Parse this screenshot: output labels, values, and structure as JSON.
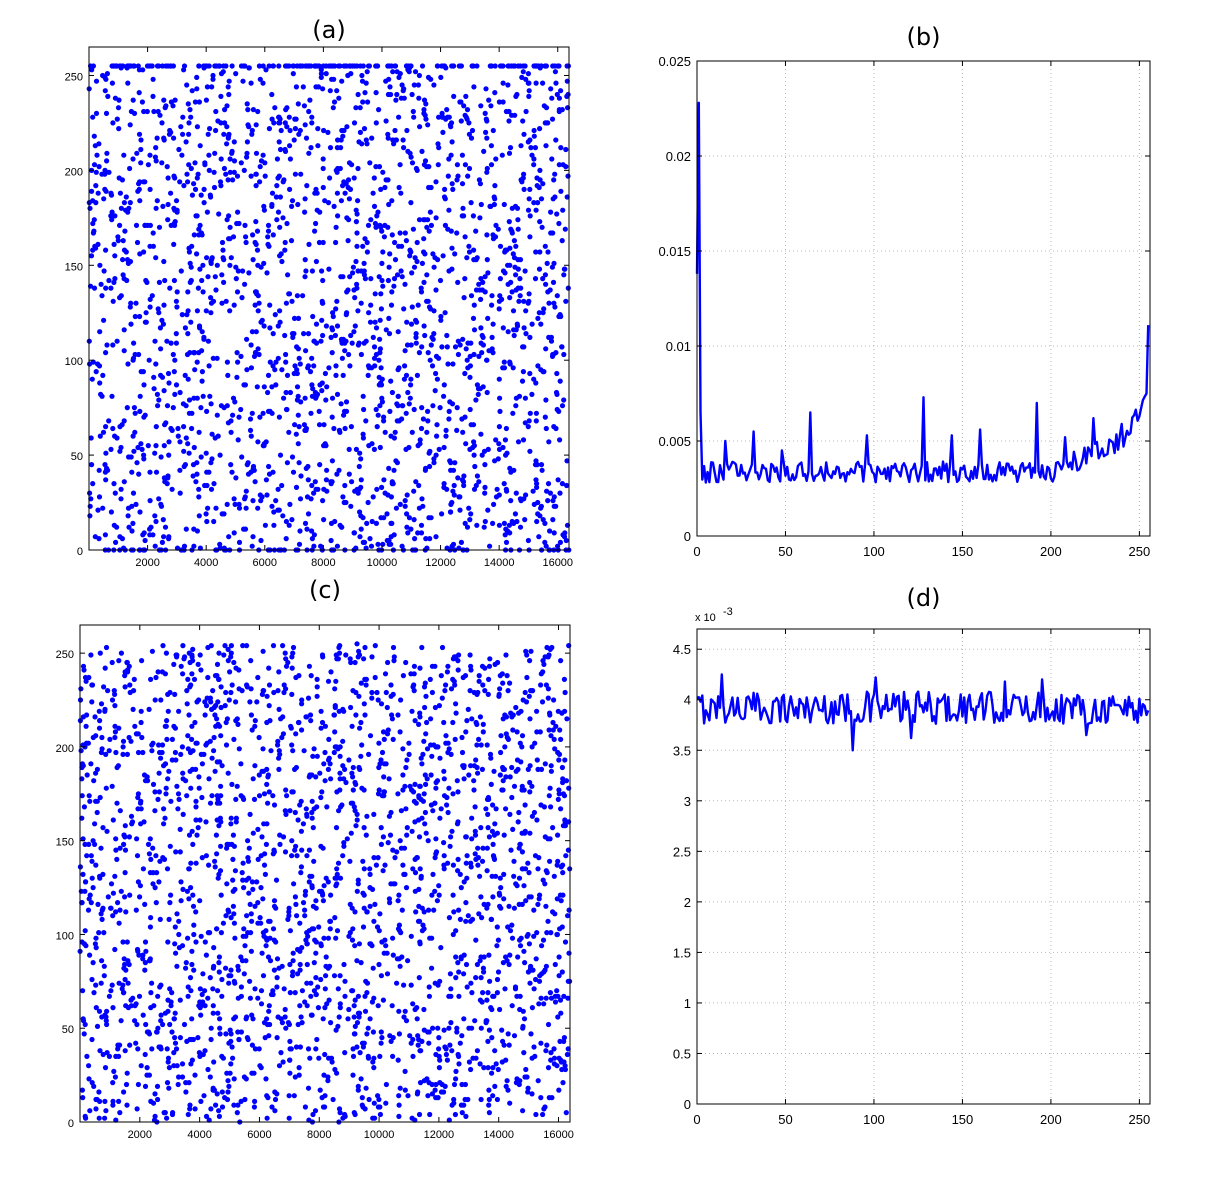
{
  "chart_data": [
    {
      "id": "a",
      "type": "scatter",
      "title": "(a)",
      "xlim": [
        0,
        16384
      ],
      "ylim": [
        0,
        265
      ],
      "xticks": [
        2000,
        4000,
        6000,
        8000,
        10000,
        12000,
        14000,
        16000
      ],
      "yticks": [
        0,
        50,
        100,
        150,
        200,
        250
      ],
      "x_range": [
        0,
        16384
      ],
      "y_range": [
        0,
        255
      ],
      "n_points": 16384,
      "density_note": "dense uniform scatter with higher concentration near 0 and 255",
      "marker_color": "#0000ff",
      "grid": false
    },
    {
      "id": "b",
      "type": "line",
      "title": "(b)",
      "xlim": [
        0,
        256
      ],
      "ylim": [
        0,
        0.025
      ],
      "xticks": [
        0,
        50,
        100,
        150,
        200,
        250
      ],
      "yticks": [
        0,
        0.005,
        0.01,
        0.015,
        0.02,
        0.025
      ],
      "ytick_labels": [
        "0",
        "0.005",
        "0.01",
        "0.015",
        "0.02",
        "0.025"
      ],
      "color": "#0000ff",
      "grid": true,
      "baseline": 0.0032,
      "x": [
        0,
        1,
        2,
        16,
        32,
        48,
        64,
        80,
        96,
        112,
        128,
        144,
        160,
        176,
        192,
        208,
        224,
        240,
        250,
        254,
        255
      ],
      "y": [
        0.0138,
        0.0228,
        0.0065,
        0.005,
        0.0055,
        0.0045,
        0.0065,
        0.0036,
        0.0053,
        0.0038,
        0.0073,
        0.0053,
        0.0056,
        0.0038,
        0.007,
        0.0052,
        0.0062,
        0.0059,
        0.0063,
        0.0075,
        0.0111
      ]
    },
    {
      "id": "c",
      "type": "scatter",
      "title": "(c)",
      "xlim": [
        0,
        16384
      ],
      "ylim": [
        0,
        265
      ],
      "xticks": [
        2000,
        4000,
        6000,
        8000,
        10000,
        12000,
        14000,
        16000
      ],
      "yticks": [
        0,
        50,
        100,
        150,
        200,
        250
      ],
      "x_range": [
        0,
        16384
      ],
      "y_range": [
        0,
        255
      ],
      "n_points": 16384,
      "density_note": "dense uniform scatter",
      "marker_color": "#0000ff",
      "grid": false
    },
    {
      "id": "d",
      "type": "line",
      "title": "(d)",
      "xlim": [
        0,
        256
      ],
      "ylim": [
        0,
        4.7
      ],
      "xticks": [
        0,
        50,
        100,
        150,
        200,
        250
      ],
      "yticks": [
        0,
        0.5,
        1,
        1.5,
        2,
        2.5,
        3,
        3.5,
        4,
        4.5
      ],
      "ytick_labels": [
        "0",
        "0.5",
        "1",
        "1.5",
        "2",
        "2.5",
        "3",
        "3.5",
        "4",
        "4.5"
      ],
      "y_multiplier_label": "x 10",
      "y_multiplier_exp": "-3",
      "color": "#0000ff",
      "grid": true,
      "baseline": 3.92,
      "x": [
        14,
        88,
        101,
        121,
        174,
        195,
        220,
        254
      ],
      "y": [
        4.25,
        3.5,
        4.22,
        3.62,
        4.18,
        4.2,
        3.65,
        3.85
      ]
    }
  ]
}
